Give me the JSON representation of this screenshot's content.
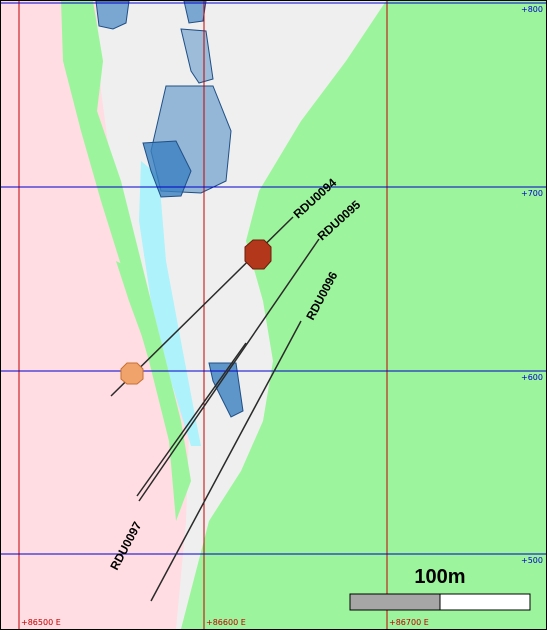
{
  "grid": {
    "easting_labels": [
      "+86500 E",
      "+86600 E",
      "+86700 E"
    ],
    "elevation_labels": [
      "+800",
      "+700",
      "+600",
      "+500"
    ],
    "easting_color": "#c00000",
    "elevation_color": "#0000cc"
  },
  "drillholes": {
    "hole_1": "RDU0094",
    "hole_2": "RDU0095",
    "hole_3": "RDU0096",
    "hole_4": "RDU0097"
  },
  "scale_bar": {
    "label": "100m"
  },
  "colors": {
    "pink_zone": "#ffdde3",
    "green_zone": "#9cf59c",
    "grey_zone": "#efefef",
    "cyan_zone": "#aef2fb",
    "workings": "#3a7fc0",
    "dark_intersection": "#b3381b",
    "orange_intersection": "#f0a36a"
  },
  "icons": {
    "dark_intersection": "hexagon-marker",
    "orange_intersection": "hexagon-marker"
  }
}
